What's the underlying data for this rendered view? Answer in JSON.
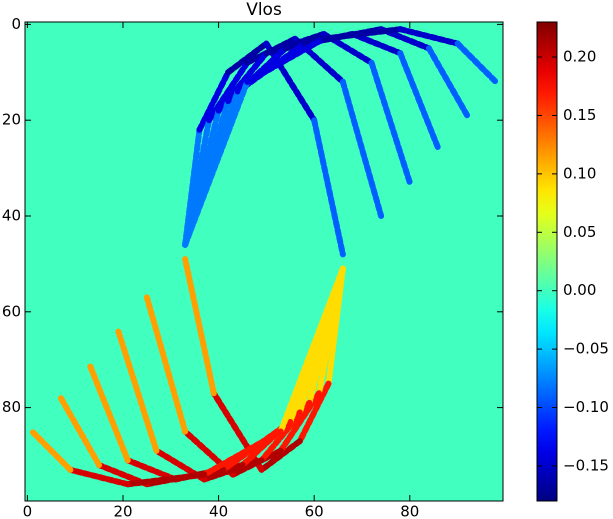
{
  "chart_data": {
    "type": "heatmap",
    "title": "Vlos",
    "colormap": "jet",
    "background": 0.0,
    "xlim": [
      -0.5,
      99.5
    ],
    "ylim": [
      99.5,
      -0.5
    ],
    "xticks": [
      0,
      20,
      40,
      60,
      80
    ],
    "yticks": [
      0,
      20,
      40,
      60,
      80
    ],
    "clim": [
      -0.18,
      0.23
    ],
    "cticks": [
      {
        "value": 0.2,
        "label": "0.20"
      },
      {
        "value": 0.15,
        "label": "0.15"
      },
      {
        "value": 0.1,
        "label": "0.10"
      },
      {
        "value": 0.05,
        "label": "0.05"
      },
      {
        "value": 0.0,
        "label": "0.00"
      },
      {
        "value": -0.05,
        "label": "−0.05"
      },
      {
        "value": -0.1,
        "label": "−0.10"
      },
      {
        "value": -0.15,
        "label": "−0.15"
      }
    ],
    "traces": [
      {
        "x": [
          33,
          36,
          42,
          50,
          60,
          66
        ],
        "y": [
          46,
          22,
          10,
          4,
          20,
          48
        ],
        "values": [
          -0.04,
          -0.12,
          -0.16,
          -0.17,
          -0.13,
          -0.05
        ]
      },
      {
        "x": [
          33,
          38,
          46,
          56,
          66,
          74
        ],
        "y": [
          46,
          20,
          8,
          3,
          12,
          40
        ],
        "values": [
          -0.04,
          -0.12,
          -0.16,
          -0.17,
          -0.13,
          -0.05
        ]
      },
      {
        "x": [
          33,
          40,
          50,
          62,
          72,
          80
        ],
        "y": [
          46,
          18,
          6,
          2,
          8,
          33
        ],
        "values": [
          -0.04,
          -0.12,
          -0.16,
          -0.17,
          -0.13,
          -0.05
        ]
      },
      {
        "x": [
          33,
          42,
          54,
          68,
          78,
          86
        ],
        "y": [
          46,
          16,
          5,
          2,
          6,
          26
        ],
        "values": [
          -0.04,
          -0.12,
          -0.16,
          -0.17,
          -0.13,
          -0.05
        ]
      },
      {
        "x": [
          33,
          44,
          58,
          74,
          84,
          92
        ],
        "y": [
          46,
          14,
          4,
          1,
          5,
          19
        ],
        "values": [
          -0.04,
          -0.12,
          -0.16,
          -0.17,
          -0.13,
          -0.05
        ]
      },
      {
        "x": [
          33,
          46,
          62,
          78,
          90,
          98
        ],
        "y": [
          46,
          12,
          3,
          1,
          4,
          12
        ],
        "values": [
          -0.04,
          -0.12,
          -0.16,
          -0.17,
          -0.13,
          -0.05
        ]
      },
      {
        "x": [
          66,
          63,
          57,
          49,
          39,
          33
        ],
        "y": [
          51,
          75,
          87,
          93,
          77,
          49
        ],
        "values": [
          0.04,
          0.14,
          0.2,
          0.22,
          0.17,
          0.06
        ]
      },
      {
        "x": [
          66,
          61,
          53,
          43,
          33,
          25
        ],
        "y": [
          51,
          77,
          89,
          94,
          85,
          57
        ],
        "values": [
          0.04,
          0.14,
          0.2,
          0.22,
          0.17,
          0.06
        ]
      },
      {
        "x": [
          66,
          59,
          49,
          37,
          27,
          19
        ],
        "y": [
          51,
          79,
          91,
          95,
          89,
          64
        ],
        "values": [
          0.04,
          0.14,
          0.2,
          0.22,
          0.17,
          0.06
        ]
      },
      {
        "x": [
          66,
          57,
          45,
          31,
          21,
          13
        ],
        "y": [
          51,
          81,
          92,
          95,
          91,
          71
        ],
        "values": [
          0.04,
          0.14,
          0.2,
          0.22,
          0.17,
          0.06
        ]
      },
      {
        "x": [
          66,
          55,
          41,
          25,
          15,
          7
        ],
        "y": [
          51,
          83,
          93,
          96,
          92,
          78
        ],
        "values": [
          0.04,
          0.14,
          0.2,
          0.22,
          0.17,
          0.06
        ]
      },
      {
        "x": [
          66,
          53,
          37,
          21,
          9,
          1
        ],
        "y": [
          51,
          85,
          94,
          96,
          93,
          85
        ],
        "values": [
          0.04,
          0.14,
          0.2,
          0.22,
          0.17,
          0.06
        ]
      }
    ]
  }
}
